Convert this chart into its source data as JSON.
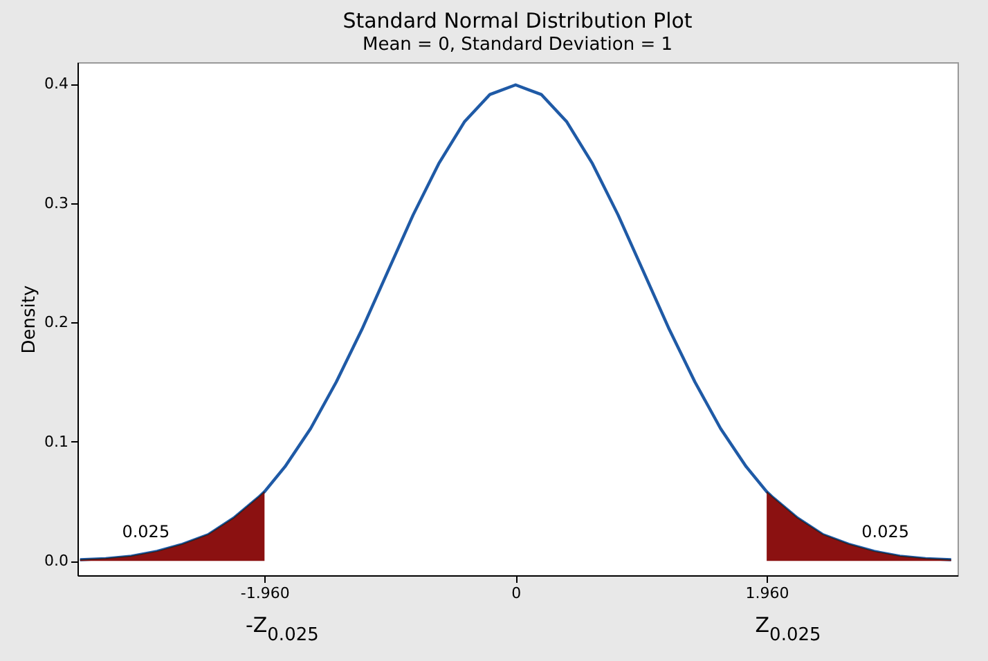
{
  "chart_data": {
    "type": "line",
    "title": "Standard Normal Distribution Plot",
    "subtitle": "Mean = 0, Standard Deviation = 1",
    "ylabel": "Density",
    "series": [
      {
        "color": "#1f5aa6",
        "x": [
          -3.4,
          -3.2,
          -3.0,
          -2.8,
          -2.6,
          -2.4,
          -2.2,
          -2.0,
          -1.96,
          -1.8,
          -1.6,
          -1.4,
          -1.2,
          -1.0,
          -0.8,
          -0.6,
          -0.4,
          -0.2,
          0,
          0.2,
          0.4,
          0.6,
          0.8,
          1.0,
          1.2,
          1.4,
          1.6,
          1.8,
          1.96,
          2.0,
          2.2,
          2.4,
          2.6,
          2.8,
          3.0,
          3.2,
          3.4
        ],
        "values": [
          0.001,
          0.002,
          0.004,
          0.008,
          0.014,
          0.022,
          0.036,
          0.054,
          0.058,
          0.079,
          0.111,
          0.15,
          0.194,
          0.242,
          0.29,
          0.333,
          0.368,
          0.391,
          0.399,
          0.391,
          0.368,
          0.333,
          0.29,
          0.242,
          0.194,
          0.15,
          0.111,
          0.079,
          0.058,
          0.054,
          0.036,
          0.022,
          0.014,
          0.008,
          0.004,
          0.002,
          0.001
        ]
      },
      {
        "type": "area",
        "color": "#8b1111",
        "x": [
          -3.4,
          -3.2,
          -3.0,
          -2.8,
          -2.6,
          -2.4,
          -2.2,
          -2.0,
          -1.96
        ],
        "values": [
          0.001,
          0.002,
          0.004,
          0.008,
          0.014,
          0.022,
          0.036,
          0.054,
          0.058
        ]
      },
      {
        "type": "area",
        "color": "#8b1111",
        "x": [
          1.96,
          2.0,
          2.2,
          2.4,
          2.6,
          2.8,
          3.0,
          3.2,
          3.4
        ],
        "values": [
          0.058,
          0.054,
          0.036,
          0.022,
          0.014,
          0.008,
          0.004,
          0.002,
          0.001
        ]
      }
    ],
    "xlim": [
      -3.42,
      3.45
    ],
    "xticks": [
      {
        "value": -1.96,
        "label": "-1.960"
      },
      0,
      {
        "value": 1.96,
        "label": "1.960"
      }
    ],
    "ylim": [
      -0.012,
      0.418
    ],
    "yticks": [
      {
        "value": 0,
        "label": "0.0"
      },
      0.1,
      0.2,
      0.3,
      0.4
    ],
    "annotations": [
      "0.025",
      "0.025",
      "-Z$_{0.025}$",
      "Z$_{0.025}$"
    ],
    "grid": false
  }
}
